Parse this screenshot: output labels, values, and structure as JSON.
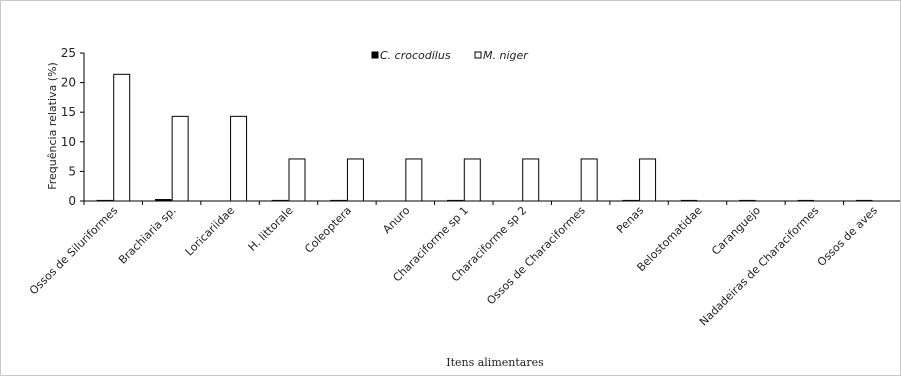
{
  "chart_data": {
    "type": "bar",
    "xlabel": "Itens alimentares",
    "ylabel": "Frequência relativa (%)",
    "ylim": [
      0,
      25
    ],
    "yticks": [
      0,
      5,
      10,
      15,
      20,
      25
    ],
    "grid": false,
    "legend_position": "top-center",
    "categories": [
      "Ossos de Siluriformes",
      "Brachiaria sp.",
      "Loricariidae",
      "H. littorale",
      "Coleoptera",
      "Anuro",
      "Characiforme sp 1",
      "Characiforme sp 2",
      "Ossos de Characiformes",
      "Penas",
      "Belostomatidae",
      "Caranguejo",
      "Nadadeiras de Characiformes",
      "Ossos de aves"
    ],
    "series": [
      {
        "name": "C. crocodilus",
        "color": "#000000",
        "values": [
          0.15,
          0.3,
          0,
          0.15,
          0.15,
          0,
          0.15,
          0,
          0,
          0.15,
          0.15,
          0.15,
          0.15,
          0.15
        ]
      },
      {
        "name": "M. niger",
        "color": "#ffffff",
        "values": [
          21.4,
          14.3,
          14.3,
          7.1,
          7.1,
          7.1,
          7.1,
          7.1,
          7.1,
          7.1,
          0,
          0,
          0,
          0
        ]
      }
    ]
  }
}
